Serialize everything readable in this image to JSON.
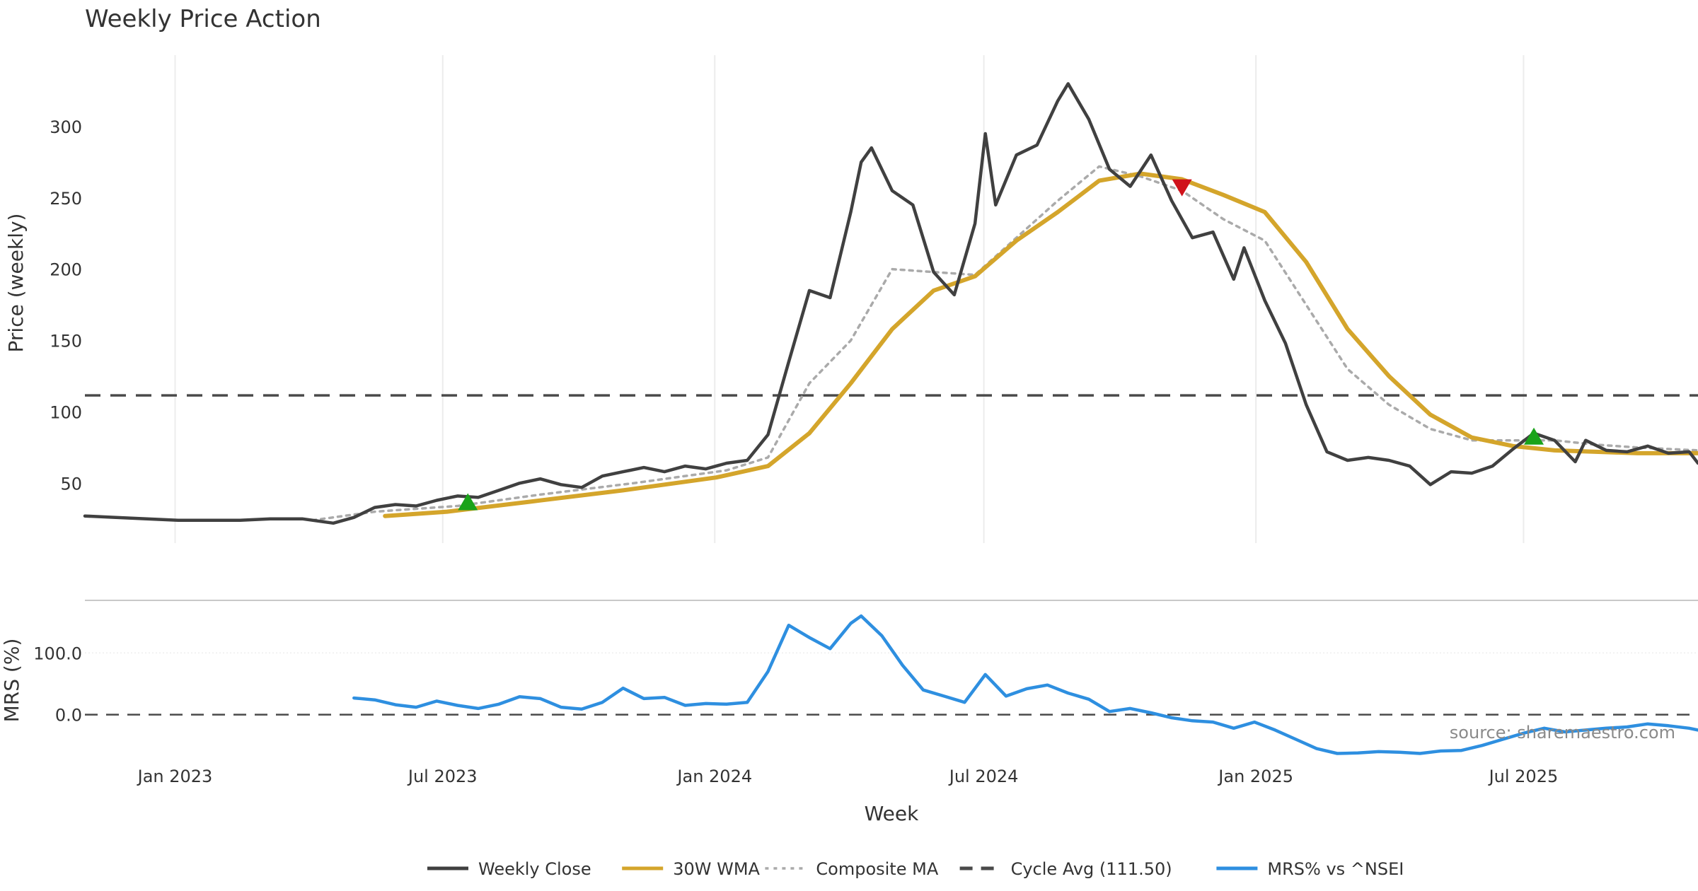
{
  "chart_data": {
    "type": "line",
    "title": "Weekly Price Action",
    "xlabel": "Week",
    "x_tick_labels": [
      "Jan 2023",
      "Jul 2023",
      "Jan 2024",
      "Jul 2024",
      "Jan 2025",
      "Jul 2025"
    ],
    "x_range": [
      "2022-11-01",
      "2025-10-27"
    ],
    "annotation": "source: sharemaestro.com",
    "grid": "vertical",
    "legend_placement": "bottom-center",
    "price_panel": {
      "ylabel": "Price (weekly)",
      "ylim": [
        8,
        350
      ],
      "y_ticks": [
        50,
        100,
        150,
        200,
        250,
        300
      ],
      "reference_line": {
        "name": "Cycle Avg (111.50)",
        "value": 111.5
      },
      "series": [
        {
          "name": "Weekly Close",
          "color": "#404040",
          "style": "solid",
          "points": [
            [
              "2022-11-01",
              27
            ],
            [
              "2022-11-22",
              26
            ],
            [
              "2022-12-13",
              25
            ],
            [
              "2023-01-03",
              24
            ],
            [
              "2023-01-24",
              24
            ],
            [
              "2023-02-14",
              24
            ],
            [
              "2023-03-07",
              25
            ],
            [
              "2023-03-28",
              25
            ],
            [
              "2023-04-18",
              22
            ],
            [
              "2023-05-02",
              26
            ],
            [
              "2023-05-16",
              33
            ],
            [
              "2023-05-30",
              35
            ],
            [
              "2023-06-13",
              34
            ],
            [
              "2023-06-27",
              38
            ],
            [
              "2023-07-11",
              41
            ],
            [
              "2023-07-25",
              40
            ],
            [
              "2023-08-08",
              45
            ],
            [
              "2023-08-22",
              50
            ],
            [
              "2023-09-05",
              53
            ],
            [
              "2023-09-19",
              49
            ],
            [
              "2023-10-03",
              47
            ],
            [
              "2023-10-17",
              55
            ],
            [
              "2023-10-31",
              58
            ],
            [
              "2023-11-14",
              61
            ],
            [
              "2023-11-28",
              58
            ],
            [
              "2023-12-12",
              62
            ],
            [
              "2023-12-26",
              60
            ],
            [
              "2024-01-09",
              64
            ],
            [
              "2024-01-23",
              66
            ],
            [
              "2024-02-06",
              84
            ],
            [
              "2024-02-20",
              135
            ],
            [
              "2024-03-05",
              185
            ],
            [
              "2024-03-19",
              180
            ],
            [
              "2024-04-02",
              240
            ],
            [
              "2024-04-09",
              275
            ],
            [
              "2024-04-16",
              285
            ],
            [
              "2024-04-30",
              255
            ],
            [
              "2024-05-14",
              245
            ],
            [
              "2024-05-28",
              198
            ],
            [
              "2024-06-11",
              182
            ],
            [
              "2024-06-25",
              232
            ],
            [
              "2024-07-02",
              295
            ],
            [
              "2024-07-09",
              245
            ],
            [
              "2024-07-23",
              280
            ],
            [
              "2024-08-06",
              287
            ],
            [
              "2024-08-20",
              318
            ],
            [
              "2024-08-27",
              330
            ],
            [
              "2024-09-10",
              305
            ],
            [
              "2024-09-24",
              270
            ],
            [
              "2024-10-08",
              258
            ],
            [
              "2024-10-22",
              280
            ],
            [
              "2024-11-05",
              248
            ],
            [
              "2024-11-19",
              222
            ],
            [
              "2024-12-03",
              226
            ],
            [
              "2024-12-17",
              193
            ],
            [
              "2024-12-24",
              215
            ],
            [
              "2025-01-07",
              178
            ],
            [
              "2025-01-21",
              148
            ],
            [
              "2025-02-04",
              105
            ],
            [
              "2025-02-18",
              72
            ],
            [
              "2025-03-04",
              66
            ],
            [
              "2025-03-18",
              68
            ],
            [
              "2025-04-01",
              66
            ],
            [
              "2025-04-15",
              62
            ],
            [
              "2025-04-29",
              49
            ],
            [
              "2025-05-13",
              58
            ],
            [
              "2025-05-27",
              57
            ],
            [
              "2025-06-10",
              62
            ],
            [
              "2025-06-24",
              74
            ],
            [
              "2025-07-08",
              85
            ],
            [
              "2025-07-22",
              80
            ],
            [
              "2025-08-05",
              65
            ],
            [
              "2025-08-12",
              80
            ],
            [
              "2025-08-26",
              73
            ],
            [
              "2025-09-09",
              72
            ],
            [
              "2025-09-23",
              76
            ],
            [
              "2025-10-07",
              71
            ],
            [
              "2025-10-21",
              72
            ],
            [
              "2025-10-27",
              64
            ]
          ]
        },
        {
          "name": "30W WMA",
          "color": "#d4a52b",
          "style": "solid",
          "points": [
            [
              "2023-05-23",
              27
            ],
            [
              "2023-07-04",
              30
            ],
            [
              "2023-08-29",
              37
            ],
            [
              "2023-10-31",
              45
            ],
            [
              "2024-01-02",
              54
            ],
            [
              "2024-02-06",
              62
            ],
            [
              "2024-03-05",
              85
            ],
            [
              "2024-04-02",
              120
            ],
            [
              "2024-04-30",
              158
            ],
            [
              "2024-05-28",
              185
            ],
            [
              "2024-06-25",
              195
            ],
            [
              "2024-07-23",
              220
            ],
            [
              "2024-08-20",
              240
            ],
            [
              "2024-09-17",
              262
            ],
            [
              "2024-10-15",
              267
            ],
            [
              "2024-11-12",
              263
            ],
            [
              "2024-12-10",
              252
            ],
            [
              "2025-01-07",
              240
            ],
            [
              "2025-02-04",
              205
            ],
            [
              "2025-03-04",
              158
            ],
            [
              "2025-04-01",
              125
            ],
            [
              "2025-04-29",
              98
            ],
            [
              "2025-05-27",
              82
            ],
            [
              "2025-06-24",
              76
            ],
            [
              "2025-07-22",
              73
            ],
            [
              "2025-08-19",
              72
            ],
            [
              "2025-09-16",
              71
            ],
            [
              "2025-10-27",
              71
            ]
          ]
        },
        {
          "name": "Composite MA",
          "color": "#aaaaaa",
          "style": "dotted",
          "points": [
            [
              "2023-04-04",
              24
            ],
            [
              "2023-05-16",
              30
            ],
            [
              "2023-07-11",
              34
            ],
            [
              "2023-09-05",
              42
            ],
            [
              "2023-11-07",
              50
            ],
            [
              "2024-01-09",
              59
            ],
            [
              "2024-02-06",
              68
            ],
            [
              "2024-03-05",
              120
            ],
            [
              "2024-04-02",
              150
            ],
            [
              "2024-04-30",
              200
            ],
            [
              "2024-05-28",
              198
            ],
            [
              "2024-06-25",
              196
            ],
            [
              "2024-07-23",
              222
            ],
            [
              "2024-08-20",
              248
            ],
            [
              "2024-09-17",
              272
            ],
            [
              "2024-10-15",
              265
            ],
            [
              "2024-11-12",
              255
            ],
            [
              "2024-12-10",
              235
            ],
            [
              "2025-01-07",
              220
            ],
            [
              "2025-02-04",
              175
            ],
            [
              "2025-03-04",
              130
            ],
            [
              "2025-04-01",
              105
            ],
            [
              "2025-04-29",
              88
            ],
            [
              "2025-05-27",
              80
            ],
            [
              "2025-06-24",
              80
            ],
            [
              "2025-07-22",
              80
            ],
            [
              "2025-08-19",
              77
            ],
            [
              "2025-09-16",
              75
            ],
            [
              "2025-10-27",
              73
            ]
          ]
        }
      ],
      "signals": [
        {
          "type": "buy",
          "color": "#1aa31a",
          "x": "2023-07-18",
          "y": 36
        },
        {
          "type": "sell",
          "color": "#d0121b",
          "x": "2024-11-12",
          "y": 258
        },
        {
          "type": "buy",
          "color": "#1aa31a",
          "x": "2025-07-08",
          "y": 82
        }
      ]
    },
    "mrs_panel": {
      "ylabel": "MRS (%)",
      "ylim": [
        -75,
        175
      ],
      "y_ticks": [
        0.0,
        100.0
      ],
      "y_tick_labels": [
        "0.0",
        "100.0"
      ],
      "reference_line": {
        "value": 0
      },
      "series": [
        {
          "name": "MRS% vs ^NSEI",
          "color": "#2e8fe0",
          "style": "solid",
          "points": [
            [
              "2023-05-02",
              27
            ],
            [
              "2023-05-16",
              24
            ],
            [
              "2023-05-30",
              16
            ],
            [
              "2023-06-13",
              12
            ],
            [
              "2023-06-27",
              22
            ],
            [
              "2023-07-11",
              15
            ],
            [
              "2023-07-25",
              10
            ],
            [
              "2023-08-08",
              17
            ],
            [
              "2023-08-22",
              29
            ],
            [
              "2023-09-05",
              26
            ],
            [
              "2023-09-19",
              12
            ],
            [
              "2023-10-03",
              9
            ],
            [
              "2023-10-17",
              20
            ],
            [
              "2023-10-31",
              43
            ],
            [
              "2023-11-14",
              26
            ],
            [
              "2023-11-28",
              28
            ],
            [
              "2023-12-12",
              15
            ],
            [
              "2023-12-26",
              18
            ],
            [
              "2024-01-09",
              17
            ],
            [
              "2024-01-23",
              20
            ],
            [
              "2024-02-06",
              70
            ],
            [
              "2024-02-20",
              145
            ],
            [
              "2024-03-05",
              125
            ],
            [
              "2024-03-19",
              107
            ],
            [
              "2024-04-02",
              148
            ],
            [
              "2024-04-09",
              160
            ],
            [
              "2024-04-23",
              128
            ],
            [
              "2024-05-07",
              80
            ],
            [
              "2024-05-21",
              40
            ],
            [
              "2024-06-04",
              30
            ],
            [
              "2024-06-18",
              20
            ],
            [
              "2024-07-02",
              65
            ],
            [
              "2024-07-16",
              30
            ],
            [
              "2024-07-30",
              42
            ],
            [
              "2024-08-13",
              48
            ],
            [
              "2024-08-27",
              35
            ],
            [
              "2024-09-10",
              25
            ],
            [
              "2024-09-24",
              5
            ],
            [
              "2024-10-08",
              10
            ],
            [
              "2024-10-22",
              3
            ],
            [
              "2024-11-05",
              -5
            ],
            [
              "2024-11-19",
              -10
            ],
            [
              "2024-12-03",
              -12
            ],
            [
              "2024-12-17",
              -22
            ],
            [
              "2024-12-31",
              -12
            ],
            [
              "2025-01-14",
              -25
            ],
            [
              "2025-01-28",
              -40
            ],
            [
              "2025-02-11",
              -55
            ],
            [
              "2025-02-25",
              -63
            ],
            [
              "2025-03-11",
              -62
            ],
            [
              "2025-03-25",
              -60
            ],
            [
              "2025-04-08",
              -61
            ],
            [
              "2025-04-22",
              -63
            ],
            [
              "2025-05-06",
              -59
            ],
            [
              "2025-05-20",
              -58
            ],
            [
              "2025-06-03",
              -50
            ],
            [
              "2025-06-17",
              -40
            ],
            [
              "2025-07-01",
              -30
            ],
            [
              "2025-07-15",
              -22
            ],
            [
              "2025-07-29",
              -28
            ],
            [
              "2025-08-12",
              -25
            ],
            [
              "2025-08-26",
              -22
            ],
            [
              "2025-09-09",
              -20
            ],
            [
              "2025-09-23",
              -15
            ],
            [
              "2025-10-07",
              -18
            ],
            [
              "2025-10-21",
              -22
            ],
            [
              "2025-10-27",
              -25
            ]
          ]
        }
      ]
    }
  }
}
